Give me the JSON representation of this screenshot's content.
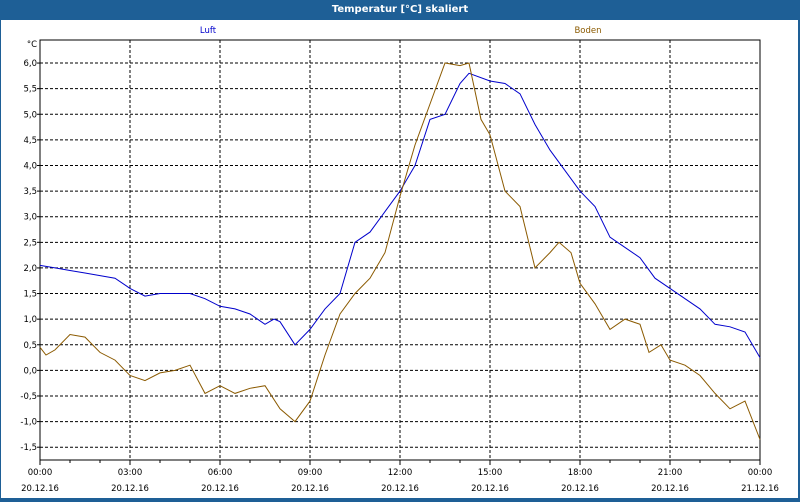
{
  "window": {
    "title": "Temperatur [°C] skaliert"
  },
  "chart_data": {
    "type": "line",
    "title": "Temperatur [°C] skaliert",
    "ylabel": "°C",
    "xlabel": "",
    "ylim": [
      -1.75,
      6.45
    ],
    "xlim": [
      0,
      24
    ],
    "grid": true,
    "yticks": [
      6.0,
      5.5,
      5.0,
      4.5,
      4.0,
      3.5,
      3.0,
      2.5,
      2.0,
      1.5,
      1.0,
      0.5,
      0.0,
      -0.5,
      -1.0,
      -1.5
    ],
    "ytick_labels": [
      "6,0",
      "5,5",
      "5,0",
      "4,5",
      "4,0",
      "3,5",
      "3,0",
      "2,5",
      "2,0",
      "1,5",
      "1,0",
      "0,5",
      "0,0",
      "-0,5",
      "-1,0",
      "-1,5"
    ],
    "xticks": [
      0,
      3,
      6,
      9,
      12,
      15,
      18,
      21,
      24
    ],
    "xtick_labels": [
      [
        "00:00",
        "20.12.16"
      ],
      [
        "03:00",
        "20.12.16"
      ],
      [
        "06:00",
        "20.12.16"
      ],
      [
        "09:00",
        "20.12.16"
      ],
      [
        "12:00",
        "20.12.16"
      ],
      [
        "15:00",
        "20.12.16"
      ],
      [
        "18:00",
        "20.12.16"
      ],
      [
        "21:00",
        "20.12.16"
      ],
      [
        "00:00",
        "21.12.16"
      ]
    ],
    "legend_placement": "top",
    "series": [
      {
        "name": "Luft",
        "color": "#0000cc",
        "x": [
          0,
          0.5,
          1,
          1.5,
          2,
          2.5,
          3,
          3.5,
          4,
          4.5,
          5,
          5.5,
          6,
          6.5,
          7,
          7.5,
          7.8,
          8,
          8.5,
          9,
          9.5,
          10,
          10.5,
          11,
          11.5,
          12,
          12.5,
          13,
          13.5,
          14,
          14.3,
          15,
          15.5,
          16,
          16.5,
          17,
          17.5,
          18,
          18.5,
          19,
          19.5,
          20,
          20.5,
          21,
          21.5,
          22,
          22.5,
          23,
          23.5,
          24
        ],
        "y": [
          2.05,
          2.0,
          1.95,
          1.9,
          1.85,
          1.8,
          1.6,
          1.45,
          1.5,
          1.5,
          1.5,
          1.4,
          1.25,
          1.2,
          1.1,
          0.9,
          1.0,
          0.95,
          0.5,
          0.8,
          1.2,
          1.5,
          2.5,
          2.7,
          3.1,
          3.5,
          4.0,
          4.9,
          5.0,
          5.6,
          5.8,
          5.65,
          5.6,
          5.4,
          4.8,
          4.3,
          3.9,
          3.5,
          3.2,
          2.6,
          2.4,
          2.2,
          1.8,
          1.6,
          1.4,
          1.2,
          0.9,
          0.85,
          0.75,
          0.25
        ]
      },
      {
        "name": "Boden",
        "color": "#8b5a00",
        "x": [
          0,
          0.2,
          0.5,
          1,
          1.5,
          2,
          2.5,
          3,
          3.5,
          4,
          4.5,
          5,
          5.5,
          6,
          6.5,
          7,
          7.5,
          8,
          8.5,
          9,
          9.5,
          10,
          10.5,
          11,
          11.5,
          12,
          12.5,
          13,
          13.5,
          14,
          14.3,
          14.7,
          15,
          15.5,
          16,
          16.5,
          17,
          17.3,
          17.7,
          18,
          18.5,
          19,
          19.5,
          20,
          20.3,
          20.7,
          21,
          21.5,
          22,
          22.5,
          23,
          23.5,
          24
        ],
        "y": [
          0.45,
          0.3,
          0.4,
          0.7,
          0.65,
          0.35,
          0.2,
          -0.1,
          -0.2,
          -0.05,
          0.0,
          0.1,
          -0.45,
          -0.3,
          -0.45,
          -0.35,
          -0.3,
          -0.75,
          -1.0,
          -0.6,
          0.3,
          1.1,
          1.5,
          1.8,
          2.3,
          3.4,
          4.4,
          5.2,
          6.0,
          5.95,
          6.0,
          4.9,
          4.6,
          3.5,
          3.2,
          2.0,
          2.3,
          2.5,
          2.3,
          1.7,
          1.3,
          0.8,
          1.0,
          0.9,
          0.35,
          0.5,
          0.2,
          0.1,
          -0.1,
          -0.45,
          -0.75,
          -0.6,
          -1.35
        ]
      }
    ]
  }
}
